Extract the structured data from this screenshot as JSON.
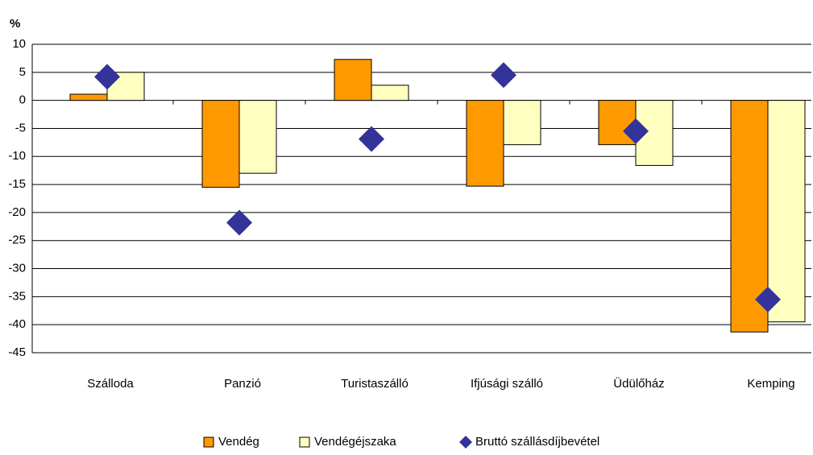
{
  "chart_data": {
    "type": "bar",
    "y_label": "%",
    "categories": [
      "Szálloda",
      "Panzió",
      "Turistaszálló",
      "Ifjúsági szálló",
      "Üdülőház",
      "Kemping"
    ],
    "series": [
      {
        "name": "Vendég",
        "color": "#ff9900",
        "values": [
          1.1,
          -15.5,
          7.3,
          -15.3,
          -7.9,
          -41.3
        ]
      },
      {
        "name": "Vendégéjszaka",
        "color": "#ffffc0",
        "values": [
          5,
          -13,
          2.7,
          -7.9,
          -11.6,
          -39.5
        ]
      },
      {
        "name": "Bruttó szállásdíjbevétel",
        "color": "#333399",
        "type": "scatter",
        "values": [
          4.2,
          -21.8,
          -6.9,
          4.5,
          -5.5,
          -35.5
        ]
      }
    ],
    "ylim": [
      -45,
      10
    ],
    "yticks": [
      -45,
      -40,
      -35,
      -30,
      -25,
      -20,
      -15,
      -10,
      -5,
      0,
      5,
      10
    ],
    "grid": true,
    "legend": "bottom"
  }
}
